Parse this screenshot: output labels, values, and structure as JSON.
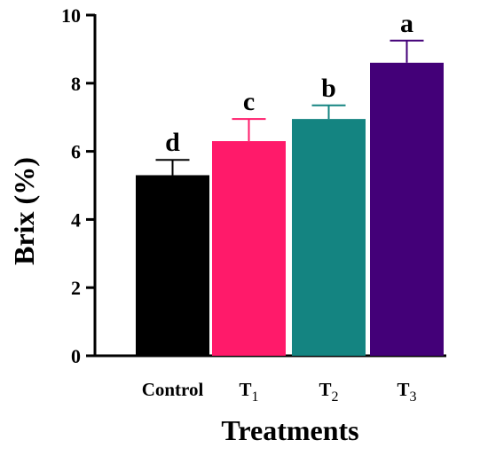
{
  "chart_data": {
    "type": "bar",
    "title": "",
    "xlabel": "Treatments",
    "ylabel": "Brix (%)",
    "ylim": [
      0,
      10
    ],
    "yticks": [
      0,
      2,
      4,
      6,
      8,
      10
    ],
    "grid": false,
    "legend": "none",
    "categories": [
      {
        "base": "Control",
        "sub": ""
      },
      {
        "base": "T",
        "sub": "1"
      },
      {
        "base": "T",
        "sub": "2"
      },
      {
        "base": "T",
        "sub": "3"
      }
    ],
    "values": [
      5.3,
      6.3,
      6.95,
      8.6
    ],
    "errors": [
      0.45,
      0.65,
      0.4,
      0.65
    ],
    "letters": [
      "d",
      "c",
      "b",
      "a"
    ],
    "colors": [
      "#000000",
      "#ff1a6a",
      "#148481",
      "#430078"
    ]
  }
}
